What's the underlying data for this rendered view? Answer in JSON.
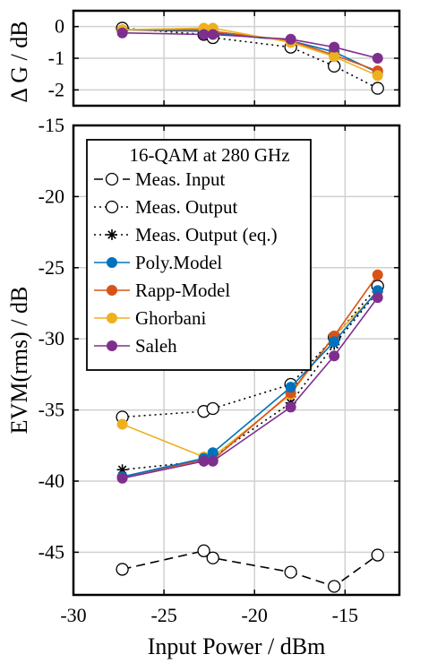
{
  "chart_data": [
    {
      "type": "line",
      "xlabel": "",
      "ylabel": "Δ G / dB",
      "xlim": [
        -30,
        -12
      ],
      "ylim": [
        -2.5,
        0.5
      ],
      "yticks": [
        0,
        -1,
        -2
      ],
      "ytick_labels": [
        "0",
        "-1",
        "-2"
      ],
      "xticks": [
        -30,
        -25,
        -20,
        -15
      ],
      "grid": true,
      "series": [
        {
          "key": "poly",
          "x": [
            -27.3,
            -22.8,
            -22.3,
            -18.0,
            -15.6,
            -13.2
          ],
          "y": [
            -0.1,
            -0.15,
            -0.2,
            -0.45,
            -0.8,
            -1.45
          ]
        },
        {
          "key": "rapp",
          "x": [
            -27.3,
            -22.8,
            -22.3,
            -18.0,
            -15.6,
            -13.2
          ],
          "y": [
            -0.1,
            -0.1,
            -0.15,
            -0.45,
            -0.9,
            -1.4
          ]
        },
        {
          "key": "ghorbani",
          "x": [
            -27.3,
            -22.8,
            -22.3,
            -18.0,
            -15.6,
            -13.2
          ],
          "y": [
            -0.1,
            -0.05,
            -0.05,
            -0.5,
            -0.95,
            -1.55
          ]
        },
        {
          "key": "saleh",
          "x": [
            -27.3,
            -22.8,
            -22.3,
            -18.0,
            -15.6,
            -13.2
          ],
          "y": [
            -0.2,
            -0.25,
            -0.25,
            -0.4,
            -0.65,
            -1.0
          ]
        },
        {
          "key": "meas_output",
          "x": [
            -27.3,
            -22.8,
            -22.3,
            -18.0,
            -15.6,
            -13.2
          ],
          "y": [
            -0.05,
            -0.25,
            -0.35,
            -0.65,
            -1.25,
            -1.95
          ]
        }
      ]
    },
    {
      "type": "line",
      "xlabel": "Input Power / dBm",
      "ylabel": "EVM(rms) / dB",
      "xlim": [
        -30,
        -12
      ],
      "ylim": [
        -48,
        -15
      ],
      "xticks": [
        -30,
        -25,
        -20,
        -15
      ],
      "xtick_labels": [
        "-30",
        "-25",
        "-20",
        "-15"
      ],
      "yticks": [
        -15,
        -20,
        -25,
        -30,
        -35,
        -40,
        -45
      ],
      "ytick_labels": [
        "-15",
        "-20",
        "-25",
        "-30",
        "-35",
        "-40",
        "-45"
      ],
      "grid": true,
      "legend_title": "16-QAM at 280 GHz",
      "legend_placement": "top-left",
      "series": [
        {
          "key": "meas_input",
          "name": "Meas. Input",
          "x": [
            -27.3,
            -22.8,
            -22.3,
            -18.0,
            -15.6,
            -13.2
          ],
          "y": [
            -46.2,
            -44.9,
            -45.4,
            -46.4,
            -47.4,
            -45.2
          ]
        },
        {
          "key": "meas_output",
          "name": "Meas. Output",
          "x": [
            -27.3,
            -22.8,
            -22.3,
            -18.0,
            -15.6,
            -13.2
          ],
          "y": [
            -35.5,
            -35.1,
            -34.9,
            -33.2,
            -29.9,
            -26.3
          ]
        },
        {
          "key": "meas_output_eq",
          "name": "Meas. Output (eq.)",
          "x": [
            -27.3,
            -22.8,
            -22.3,
            -18.0,
            -15.6,
            -13.2
          ],
          "y": [
            -39.2,
            -38.6,
            -38.3,
            -34.5,
            -30.4,
            -26.7
          ]
        },
        {
          "key": "poly",
          "name": "Poly.Model",
          "x": [
            -27.3,
            -22.8,
            -22.3,
            -18.0,
            -15.6,
            -13.2
          ],
          "y": [
            -39.7,
            -38.4,
            -38.0,
            -33.4,
            -30.2,
            -26.6
          ]
        },
        {
          "key": "rapp",
          "name": "Rapp-Model",
          "x": [
            -27.3,
            -22.8,
            -22.3,
            -18.0,
            -15.6,
            -13.2
          ],
          "y": [
            -39.7,
            -38.5,
            -38.5,
            -33.8,
            -29.8,
            -25.5
          ]
        },
        {
          "key": "ghorbani",
          "name": "Ghorbani",
          "x": [
            -27.3,
            -22.8,
            -22.3,
            -18.0,
            -15.6,
            -13.2
          ],
          "y": [
            -36.0,
            -38.3,
            -38.3,
            -33.9,
            -29.8,
            -26.7
          ]
        },
        {
          "key": "saleh",
          "name": "Saleh",
          "x": [
            -27.3,
            -22.8,
            -22.3,
            -18.0,
            -15.6,
            -13.2
          ],
          "y": [
            -39.8,
            -38.6,
            -38.6,
            -34.8,
            -31.2,
            -27.1
          ]
        }
      ]
    }
  ],
  "styles": {
    "meas_input": {
      "color": "#000000",
      "dash": "10,6",
      "marker": "open-circle"
    },
    "meas_output": {
      "color": "#000000",
      "dash": "2,4",
      "marker": "open-circle"
    },
    "meas_output_eq": {
      "color": "#000000",
      "dash": "2,4",
      "marker": "asterisk"
    },
    "poly": {
      "color": "#0072BD",
      "dash": "",
      "marker": "filled-circle"
    },
    "rapp": {
      "color": "#D95319",
      "dash": "",
      "marker": "filled-circle"
    },
    "ghorbani": {
      "color": "#EDB120",
      "dash": "",
      "marker": "filled-circle"
    },
    "saleh": {
      "color": "#7E2F8E",
      "dash": "",
      "marker": "filled-circle"
    }
  },
  "legend_order": [
    "meas_input",
    "meas_output",
    "meas_output_eq",
    "poly",
    "rapp",
    "ghorbani",
    "saleh"
  ]
}
